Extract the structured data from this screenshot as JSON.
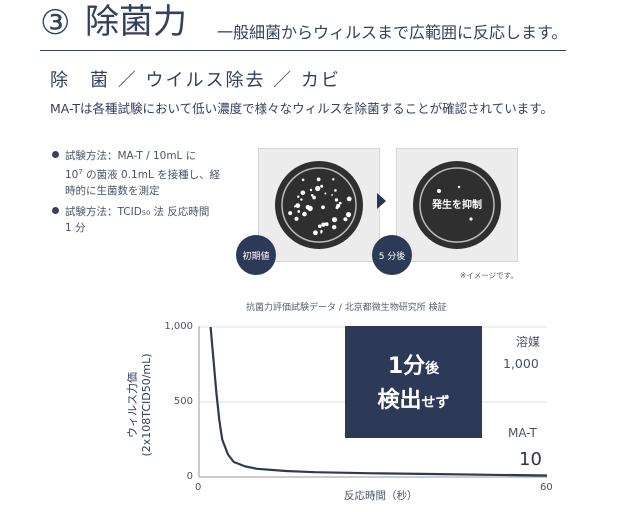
{
  "header": {
    "number": "③",
    "title": "除菌力",
    "subtitle": "一般細菌からウィルスまで広範囲に反応します。"
  },
  "section_heading": "除　菌 ／ ウイルス除去 ／ カビ",
  "description": "MA-Tは各種試験において低い濃度で様々なウィルスを除菌することが確認されています。",
  "methods": [
    {
      "line1": "試験方法：MA-T / 10mL に",
      "line2_pre": "10",
      "line2_sup": "7",
      "line2_post": " の菌液 0.1mL を接種し、経",
      "line3": "時的に生菌数を測定"
    },
    {
      "line1": "試験方法：TCID₅₀ 法 反応時間",
      "line2": "1 分"
    }
  ],
  "images": {
    "panel1_tag": "初期値",
    "panel2_tag": "5 分後",
    "panel2_text": "発生を抑制",
    "note": "※イメージです。"
  },
  "chart_data": {
    "type": "line",
    "caption": "抗菌力評価試験データ / 北京都微生物研究所 検証",
    "xlabel": "反応時間（秒）",
    "ylabel_line1": "ウィルス力価",
    "ylabel_line2": "(2x108TCID50/mL)",
    "xlim": [
      0,
      60
    ],
    "ylim": [
      0,
      1000
    ],
    "yticks": [
      "1,000",
      "500",
      "0"
    ],
    "xticks": [
      "0",
      "60"
    ],
    "series": [
      {
        "x": [
          2,
          2.5,
          3,
          3.5,
          4,
          5,
          6,
          8,
          10,
          15,
          20,
          30,
          40,
          50,
          60
        ],
        "y": [
          1000,
          780,
          560,
          380,
          250,
          150,
          100,
          70,
          55,
          40,
          32,
          25,
          20,
          15,
          10
        ]
      }
    ],
    "legend": {
      "solvent_label": "溶媒",
      "solvent_value": "1,000",
      "mat_label": "MA-T",
      "mat_value": "10"
    }
  },
  "result": {
    "line1_main": "1分",
    "line1_small": "後",
    "line2_main": "検出",
    "line2_small": "せず"
  }
}
